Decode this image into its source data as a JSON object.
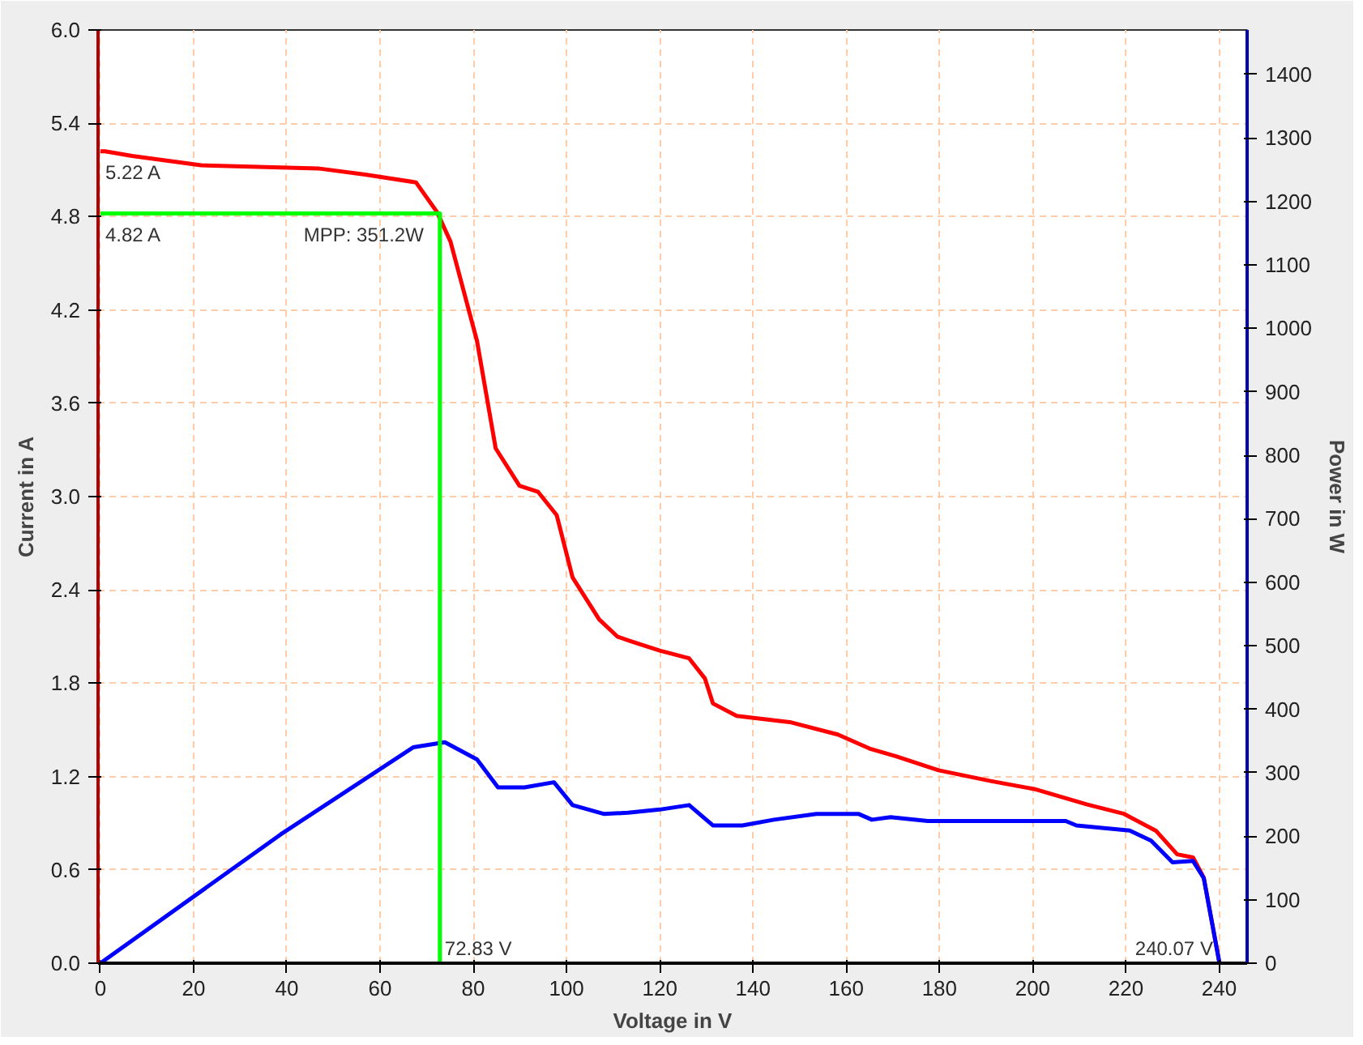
{
  "chart_data": {
    "type": "line",
    "xlabel": "Voltage in V",
    "ylabel": "Current in A",
    "y2label": "Power in W",
    "xlim": [
      -0.5,
      246
    ],
    "xticks": [
      0,
      20,
      40,
      60,
      80,
      100,
      120,
      140,
      160,
      180,
      200,
      220,
      240
    ],
    "ylim": [
      0,
      6.0
    ],
    "yticks": [
      {
        "value": 0,
        "label": "0.0"
      },
      0.6,
      1.2,
      1.8,
      2.4,
      {
        "value": 3,
        "label": "3.0"
      },
      3.6,
      4.2,
      4.8,
      5.4,
      {
        "value": 6,
        "label": "6.0"
      }
    ],
    "y2lim": [
      0,
      1470
    ],
    "y2ticks": [
      0,
      100,
      200,
      300,
      400,
      500,
      600,
      700,
      800,
      900,
      1000,
      1100,
      1200,
      1300,
      1400
    ],
    "grid": true,
    "line_style": "solid",
    "marker": "none",
    "series": [
      {
        "color": "#ff0000",
        "x": [
          0,
          1,
          6.8,
          21.6,
          46.7,
          56.8,
          67.7,
          72.2,
          75.1,
          80.8,
          84.8,
          89.9,
          93.9,
          97.9,
          101.3,
          107,
          110.9,
          113.8,
          120,
          126.3,
          129.7,
          131.4,
          136.5,
          147.9,
          158.2,
          165,
          170.7,
          179.8,
          191.2,
          200.3,
          211.7,
          219.6,
          226.5,
          231,
          234.4,
          236.7,
          240.07
        ],
        "values": [
          5.22,
          5.22,
          5.19,
          5.13,
          5.11,
          5.07,
          5.02,
          4.83,
          4.64,
          4.0,
          3.31,
          3.07,
          3.03,
          2.88,
          2.48,
          2.21,
          2.1,
          2.07,
          2.01,
          1.96,
          1.83,
          1.67,
          1.59,
          1.55,
          1.47,
          1.38,
          1.33,
          1.24,
          1.17,
          1.12,
          1.02,
          0.96,
          0.85,
          0.7,
          0.68,
          0.55,
          0
        ]
      },
      {
        "color": "#0000ff",
        "axis": "y2",
        "x": [
          0,
          38.7,
          67.1,
          73.9,
          80.8,
          85.3,
          91,
          97.3,
          101.3,
          108.1,
          113.2,
          120,
          126.3,
          131.4,
          137.7,
          144.5,
          153.6,
          162.7,
          165.5,
          169.5,
          177.5,
          207.1,
          209.4,
          220.8,
          225.4,
          230,
          234.4,
          236.7,
          240.07
        ],
        "values": [
          0,
          203,
          340,
          348,
          321,
          277,
          277,
          285,
          249,
          235,
          237,
          242,
          249,
          217,
          217,
          226,
          235,
          235,
          226,
          230,
          224,
          224,
          217,
          209,
          193,
          159,
          161,
          134,
          0
        ]
      },
      {
        "color": "#00ff00",
        "x": [
          0,
          72.83,
          72.83
        ],
        "values": [
          4.82,
          4.82,
          0
        ]
      }
    ],
    "annotations": [
      {
        "text": "5.22 A",
        "x": 0,
        "y": 5.22
      },
      {
        "text": "4.82 A",
        "x": 0,
        "y": 4.82
      },
      {
        "text": "MPP: 351.2W",
        "x": 72.83,
        "y": 4.82
      },
      {
        "text": "72.83 V",
        "x": 72.83,
        "y": 0
      },
      {
        "text": "240.07 V",
        "x": 240.07,
        "y": 0
      }
    ]
  }
}
